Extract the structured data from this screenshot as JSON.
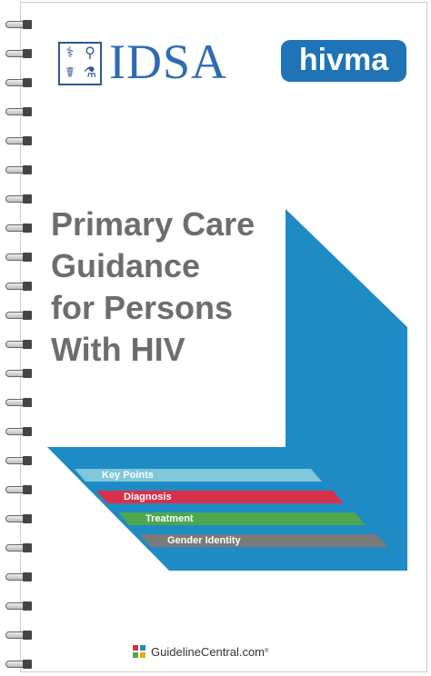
{
  "logos": {
    "idsa": {
      "text": "IDSA",
      "grid_icons": [
        "microscope-icon",
        "stethoscope-icon",
        "caduceus-icon",
        "lab-flask-icon"
      ]
    },
    "hivma": {
      "text": "hivma"
    }
  },
  "title_lines": [
    "Primary Care",
    "Guidance",
    "for Persons",
    "With HIV"
  ],
  "tabs": [
    {
      "label": "Key Points",
      "color": "#7fc7d9"
    },
    {
      "label": "Diagnosis",
      "color": "#d9304a"
    },
    {
      "label": "Treatment",
      "color": "#4ca84e"
    },
    {
      "label": "Gender Identity",
      "color": "#7a7a7a"
    }
  ],
  "colors": {
    "primary_blue": "#1f8bc5",
    "idsa_blue": "#2f6bb3",
    "hivma_blue": "#1f73b7",
    "title_gray": "#6d6d6d"
  },
  "footer": {
    "brand": "GuidelineCentral.com",
    "trademark": "®"
  }
}
